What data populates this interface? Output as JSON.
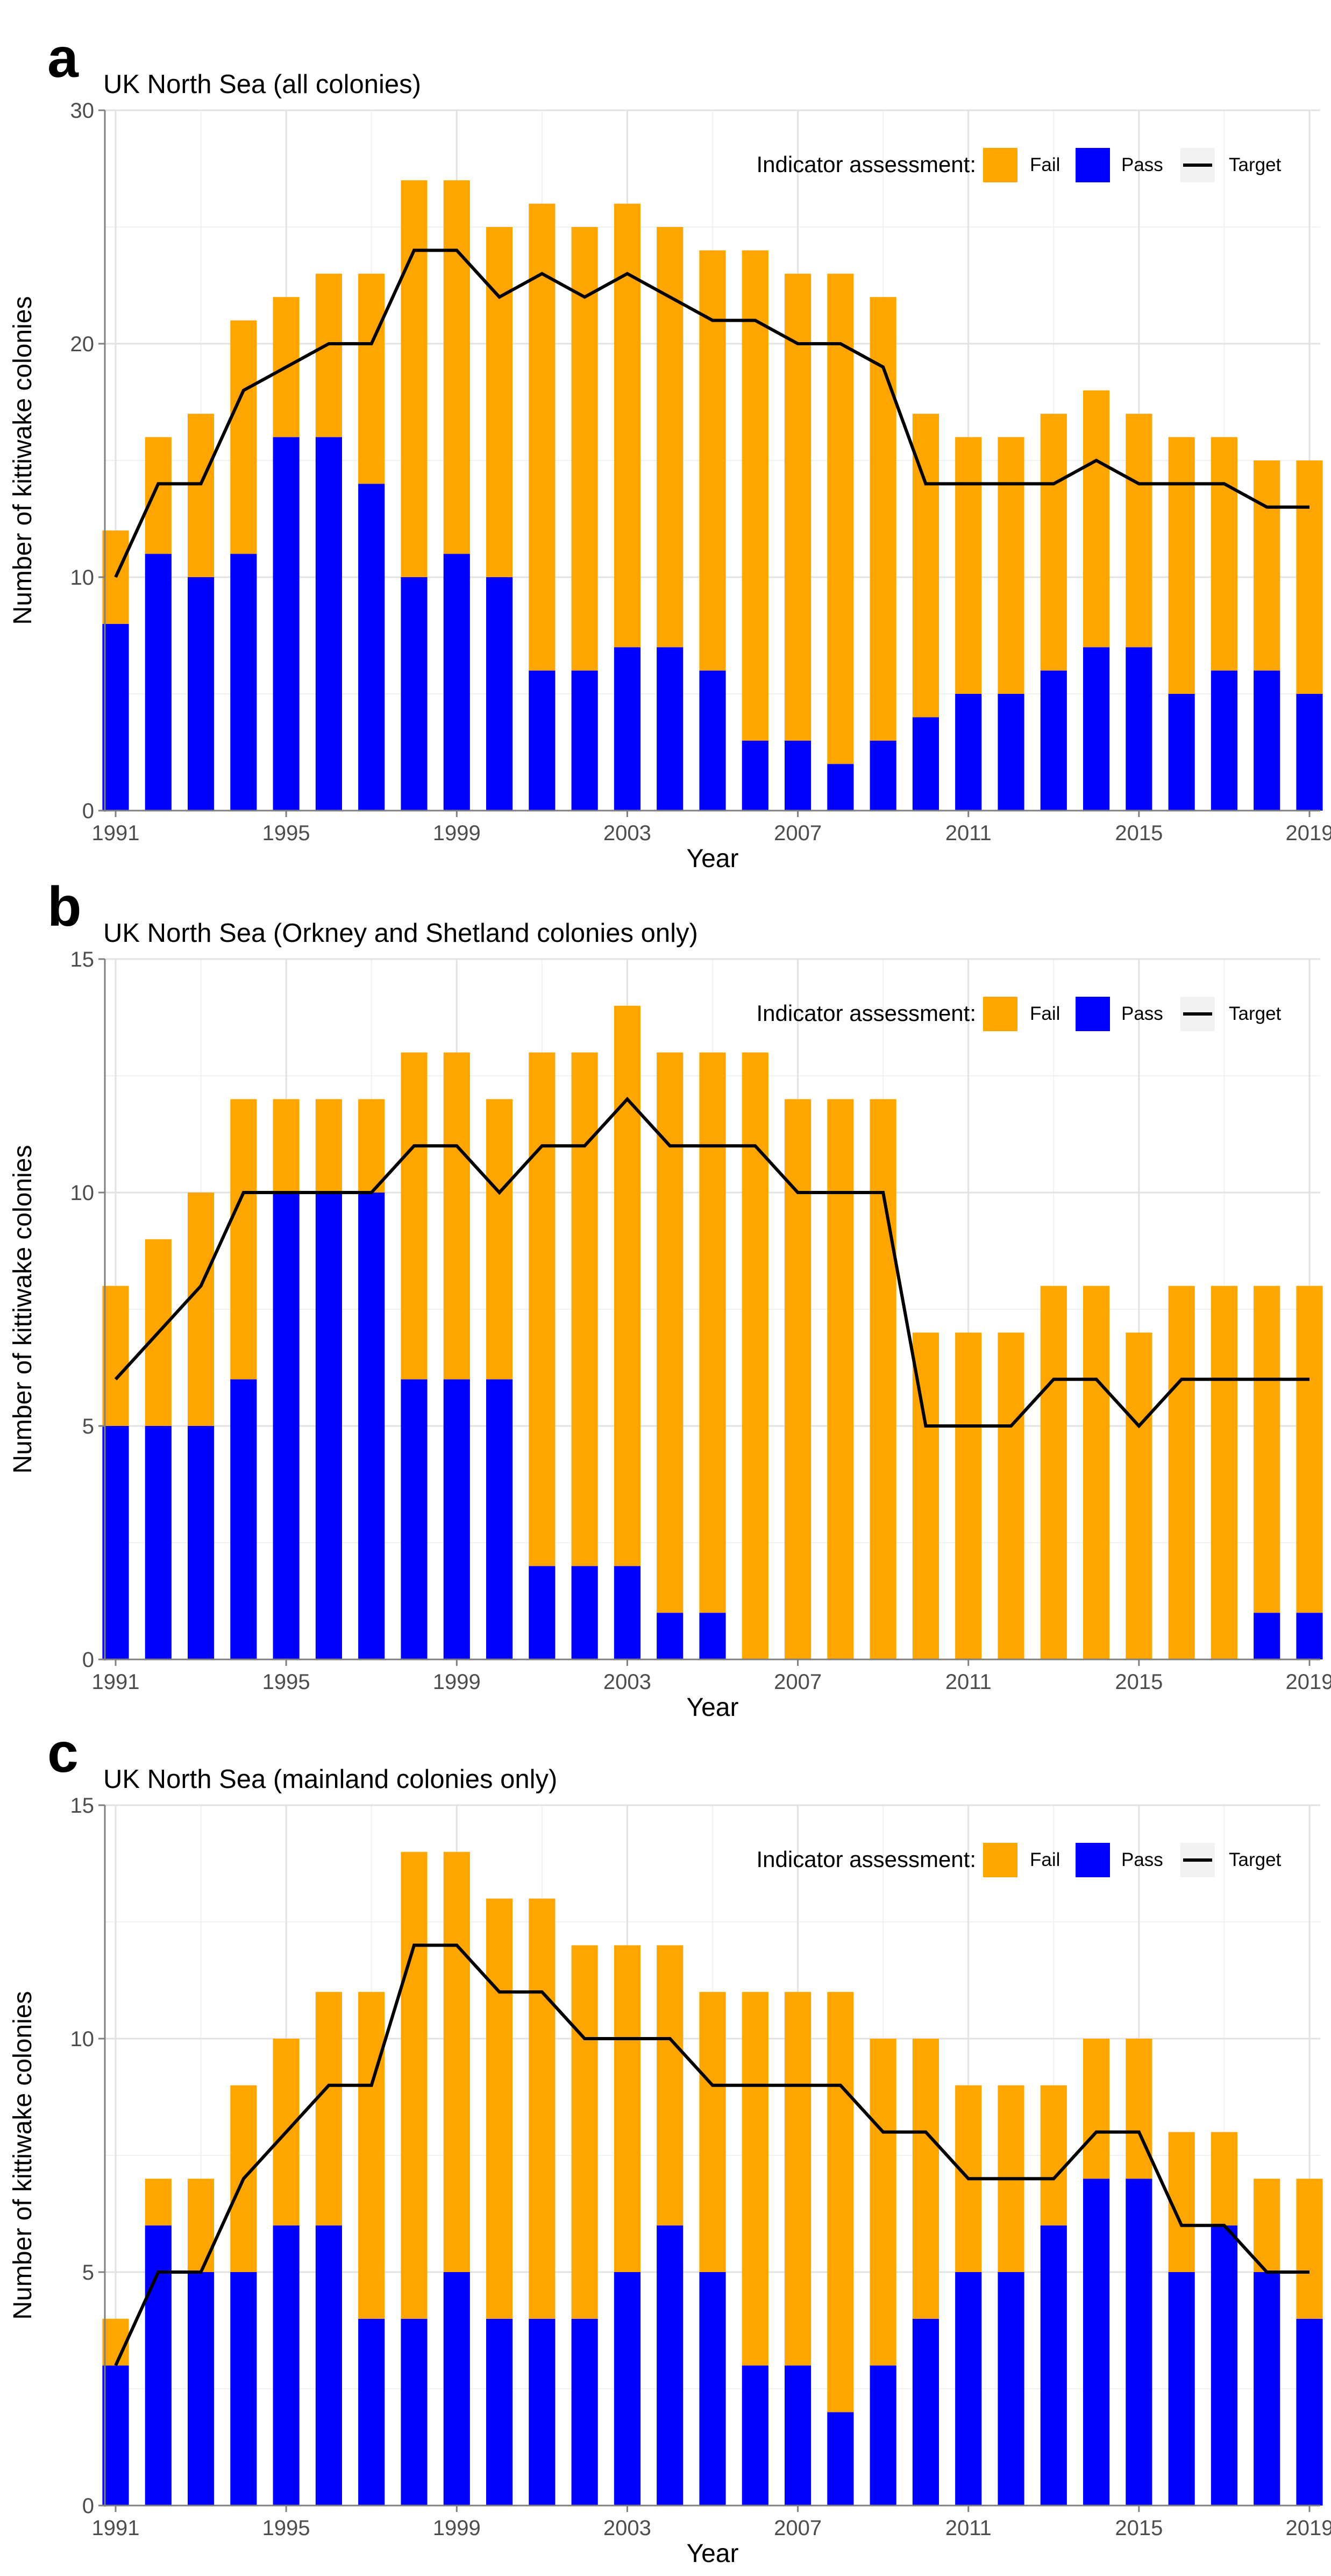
{
  "figure": {
    "colors": {
      "fail": "#FFA500",
      "pass": "#0000FF",
      "target": "#000000",
      "grid_major": "#e2e2e2",
      "grid_minor": "#f1f1f1",
      "axis": "#7f7f7f",
      "text": "#000000",
      "tick_text": "#4d4d4d"
    }
  },
  "chart_data": [
    {
      "panel_label": "a",
      "type": "bar",
      "stacked": true,
      "title": "UK North Sea (all colonies)",
      "xlabel": "Year",
      "ylabel": "Number of kittiwake colonies",
      "ylim": [
        0,
        30
      ],
      "yticks": [
        0,
        10,
        20,
        30
      ],
      "xticks": [
        1991,
        1995,
        1999,
        2003,
        2007,
        2011,
        2015,
        2019
      ],
      "legend": {
        "title": "Indicator assessment:",
        "position": "top-right",
        "items": [
          "Fail",
          "Pass",
          "Target"
        ]
      },
      "categories": [
        1991,
        1992,
        1993,
        1994,
        1995,
        1996,
        1997,
        1998,
        1999,
        2000,
        2001,
        2002,
        2003,
        2004,
        2005,
        2006,
        2007,
        2008,
        2009,
        2010,
        2011,
        2012,
        2013,
        2014,
        2015,
        2016,
        2017,
        2018,
        2019
      ],
      "series": [
        {
          "name": "Pass",
          "values": [
            8,
            11,
            10,
            11,
            16,
            16,
            14,
            10,
            11,
            10,
            6,
            6,
            7,
            7,
            6,
            3,
            3,
            2,
            3,
            4,
            5,
            5,
            6,
            7,
            7,
            5,
            6,
            6,
            5
          ]
        },
        {
          "name": "Fail",
          "values": [
            4,
            5,
            7,
            10,
            6,
            7,
            9,
            17,
            16,
            15,
            20,
            19,
            19,
            18,
            18,
            21,
            20,
            21,
            19,
            13,
            11,
            11,
            11,
            11,
            10,
            11,
            10,
            9,
            10
          ]
        }
      ],
      "target": [
        10,
        14,
        14,
        18,
        19,
        20,
        20,
        24,
        24,
        22,
        23,
        22,
        23,
        22,
        21,
        21,
        20,
        20,
        19,
        14,
        14,
        14,
        14,
        15,
        14,
        14,
        14,
        13,
        13
      ]
    },
    {
      "panel_label": "b",
      "type": "bar",
      "stacked": true,
      "title": "UK North Sea (Orkney and Shetland colonies only)",
      "xlabel": "Year",
      "ylabel": "Number of kittiwake colonies",
      "ylim": [
        0,
        15
      ],
      "yticks": [
        0,
        5,
        10,
        15
      ],
      "xticks": [
        1991,
        1995,
        1999,
        2003,
        2007,
        2011,
        2015,
        2019
      ],
      "legend": {
        "title": "Indicator assessment:",
        "position": "top-right",
        "items": [
          "Fail",
          "Pass",
          "Target"
        ]
      },
      "categories": [
        1991,
        1992,
        1993,
        1994,
        1995,
        1996,
        1997,
        1998,
        1999,
        2000,
        2001,
        2002,
        2003,
        2004,
        2005,
        2006,
        2007,
        2008,
        2009,
        2010,
        2011,
        2012,
        2013,
        2014,
        2015,
        2016,
        2017,
        2018,
        2019
      ],
      "series": [
        {
          "name": "Pass",
          "values": [
            5,
            5,
            5,
            6,
            10,
            10,
            10,
            6,
            6,
            6,
            2,
            2,
            2,
            1,
            1,
            0,
            0,
            0,
            0,
            0,
            0,
            0,
            0,
            0,
            0,
            0,
            0,
            1,
            1
          ]
        },
        {
          "name": "Fail",
          "values": [
            3,
            4,
            5,
            6,
            2,
            2,
            2,
            7,
            7,
            6,
            11,
            11,
            12,
            12,
            12,
            13,
            12,
            12,
            12,
            7,
            7,
            7,
            8,
            8,
            7,
            8,
            8,
            7,
            7
          ]
        }
      ],
      "target": [
        6,
        7,
        8,
        10,
        10,
        10,
        10,
        11,
        11,
        10,
        11,
        11,
        12,
        11,
        11,
        11,
        10,
        10,
        10,
        5,
        5,
        5,
        6,
        6,
        5,
        6,
        6,
        6,
        6
      ]
    },
    {
      "panel_label": "c",
      "type": "bar",
      "stacked": true,
      "title": "UK North Sea (mainland colonies only)",
      "xlabel": "Year",
      "ylabel": "Number of kittiwake colonies",
      "ylim": [
        0,
        15
      ],
      "yticks": [
        0,
        5,
        10,
        15
      ],
      "xticks": [
        1991,
        1995,
        1999,
        2003,
        2007,
        2011,
        2015,
        2019
      ],
      "legend": {
        "title": "Indicator assessment:",
        "position": "top-right",
        "items": [
          "Fail",
          "Pass",
          "Target"
        ]
      },
      "categories": [
        1991,
        1992,
        1993,
        1994,
        1995,
        1996,
        1997,
        1998,
        1999,
        2000,
        2001,
        2002,
        2003,
        2004,
        2005,
        2006,
        2007,
        2008,
        2009,
        2010,
        2011,
        2012,
        2013,
        2014,
        2015,
        2016,
        2017,
        2018,
        2019
      ],
      "series": [
        {
          "name": "Pass",
          "values": [
            3,
            6,
            5,
            5,
            6,
            6,
            4,
            4,
            5,
            4,
            4,
            4,
            5,
            6,
            5,
            3,
            3,
            2,
            3,
            4,
            5,
            5,
            6,
            7,
            7,
            5,
            6,
            5,
            4
          ]
        },
        {
          "name": "Fail",
          "values": [
            1,
            1,
            2,
            4,
            4,
            5,
            7,
            10,
            9,
            9,
            9,
            8,
            7,
            6,
            6,
            8,
            8,
            9,
            7,
            6,
            4,
            4,
            3,
            3,
            3,
            3,
            2,
            2,
            3
          ]
        }
      ],
      "target": [
        3,
        5,
        5,
        7,
        8,
        9,
        9,
        12,
        12,
        11,
        11,
        10,
        10,
        10,
        9,
        9,
        9,
        9,
        8,
        8,
        7,
        7,
        7,
        8,
        8,
        6,
        6,
        5,
        5
      ]
    }
  ]
}
